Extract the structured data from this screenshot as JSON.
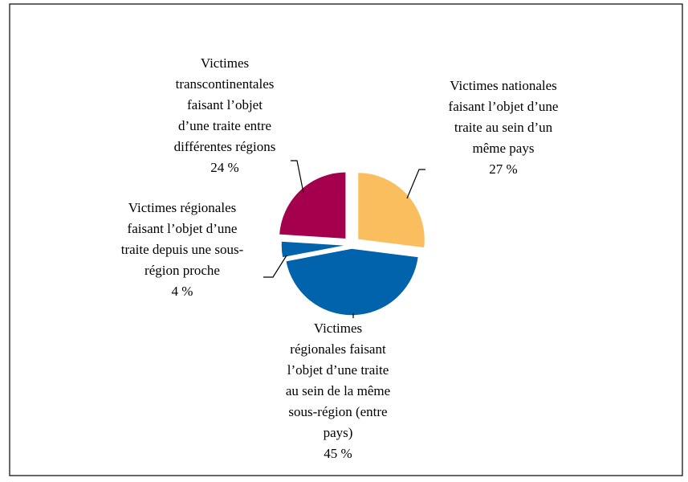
{
  "chart_data": {
    "type": "pie",
    "categories": [
      [
        "Victimes nationales",
        "faisant l’objet d’une",
        "traite au sein d’un",
        "même pays"
      ],
      [
        "Victimes",
        "régionales faisant",
        "l’objet d’une traite",
        "au sein de la même",
        "sous-région (entre",
        "pays)"
      ],
      [
        "Victimes régionales",
        "faisant l’objet d’une",
        "traite depuis une sous-",
        "région proche"
      ],
      [
        "Victimes",
        "transcontinentales",
        "faisant l’objet",
        "d’une traite entre",
        "différentes régions"
      ]
    ],
    "values": [
      27,
      45,
      4,
      24
    ],
    "value_labels": [
      "27 %",
      "45 %",
      "4 %",
      "24 %"
    ],
    "colors": [
      "#FBBE5E",
      "#0063AB",
      "#0063AB",
      "#A5004D"
    ]
  }
}
